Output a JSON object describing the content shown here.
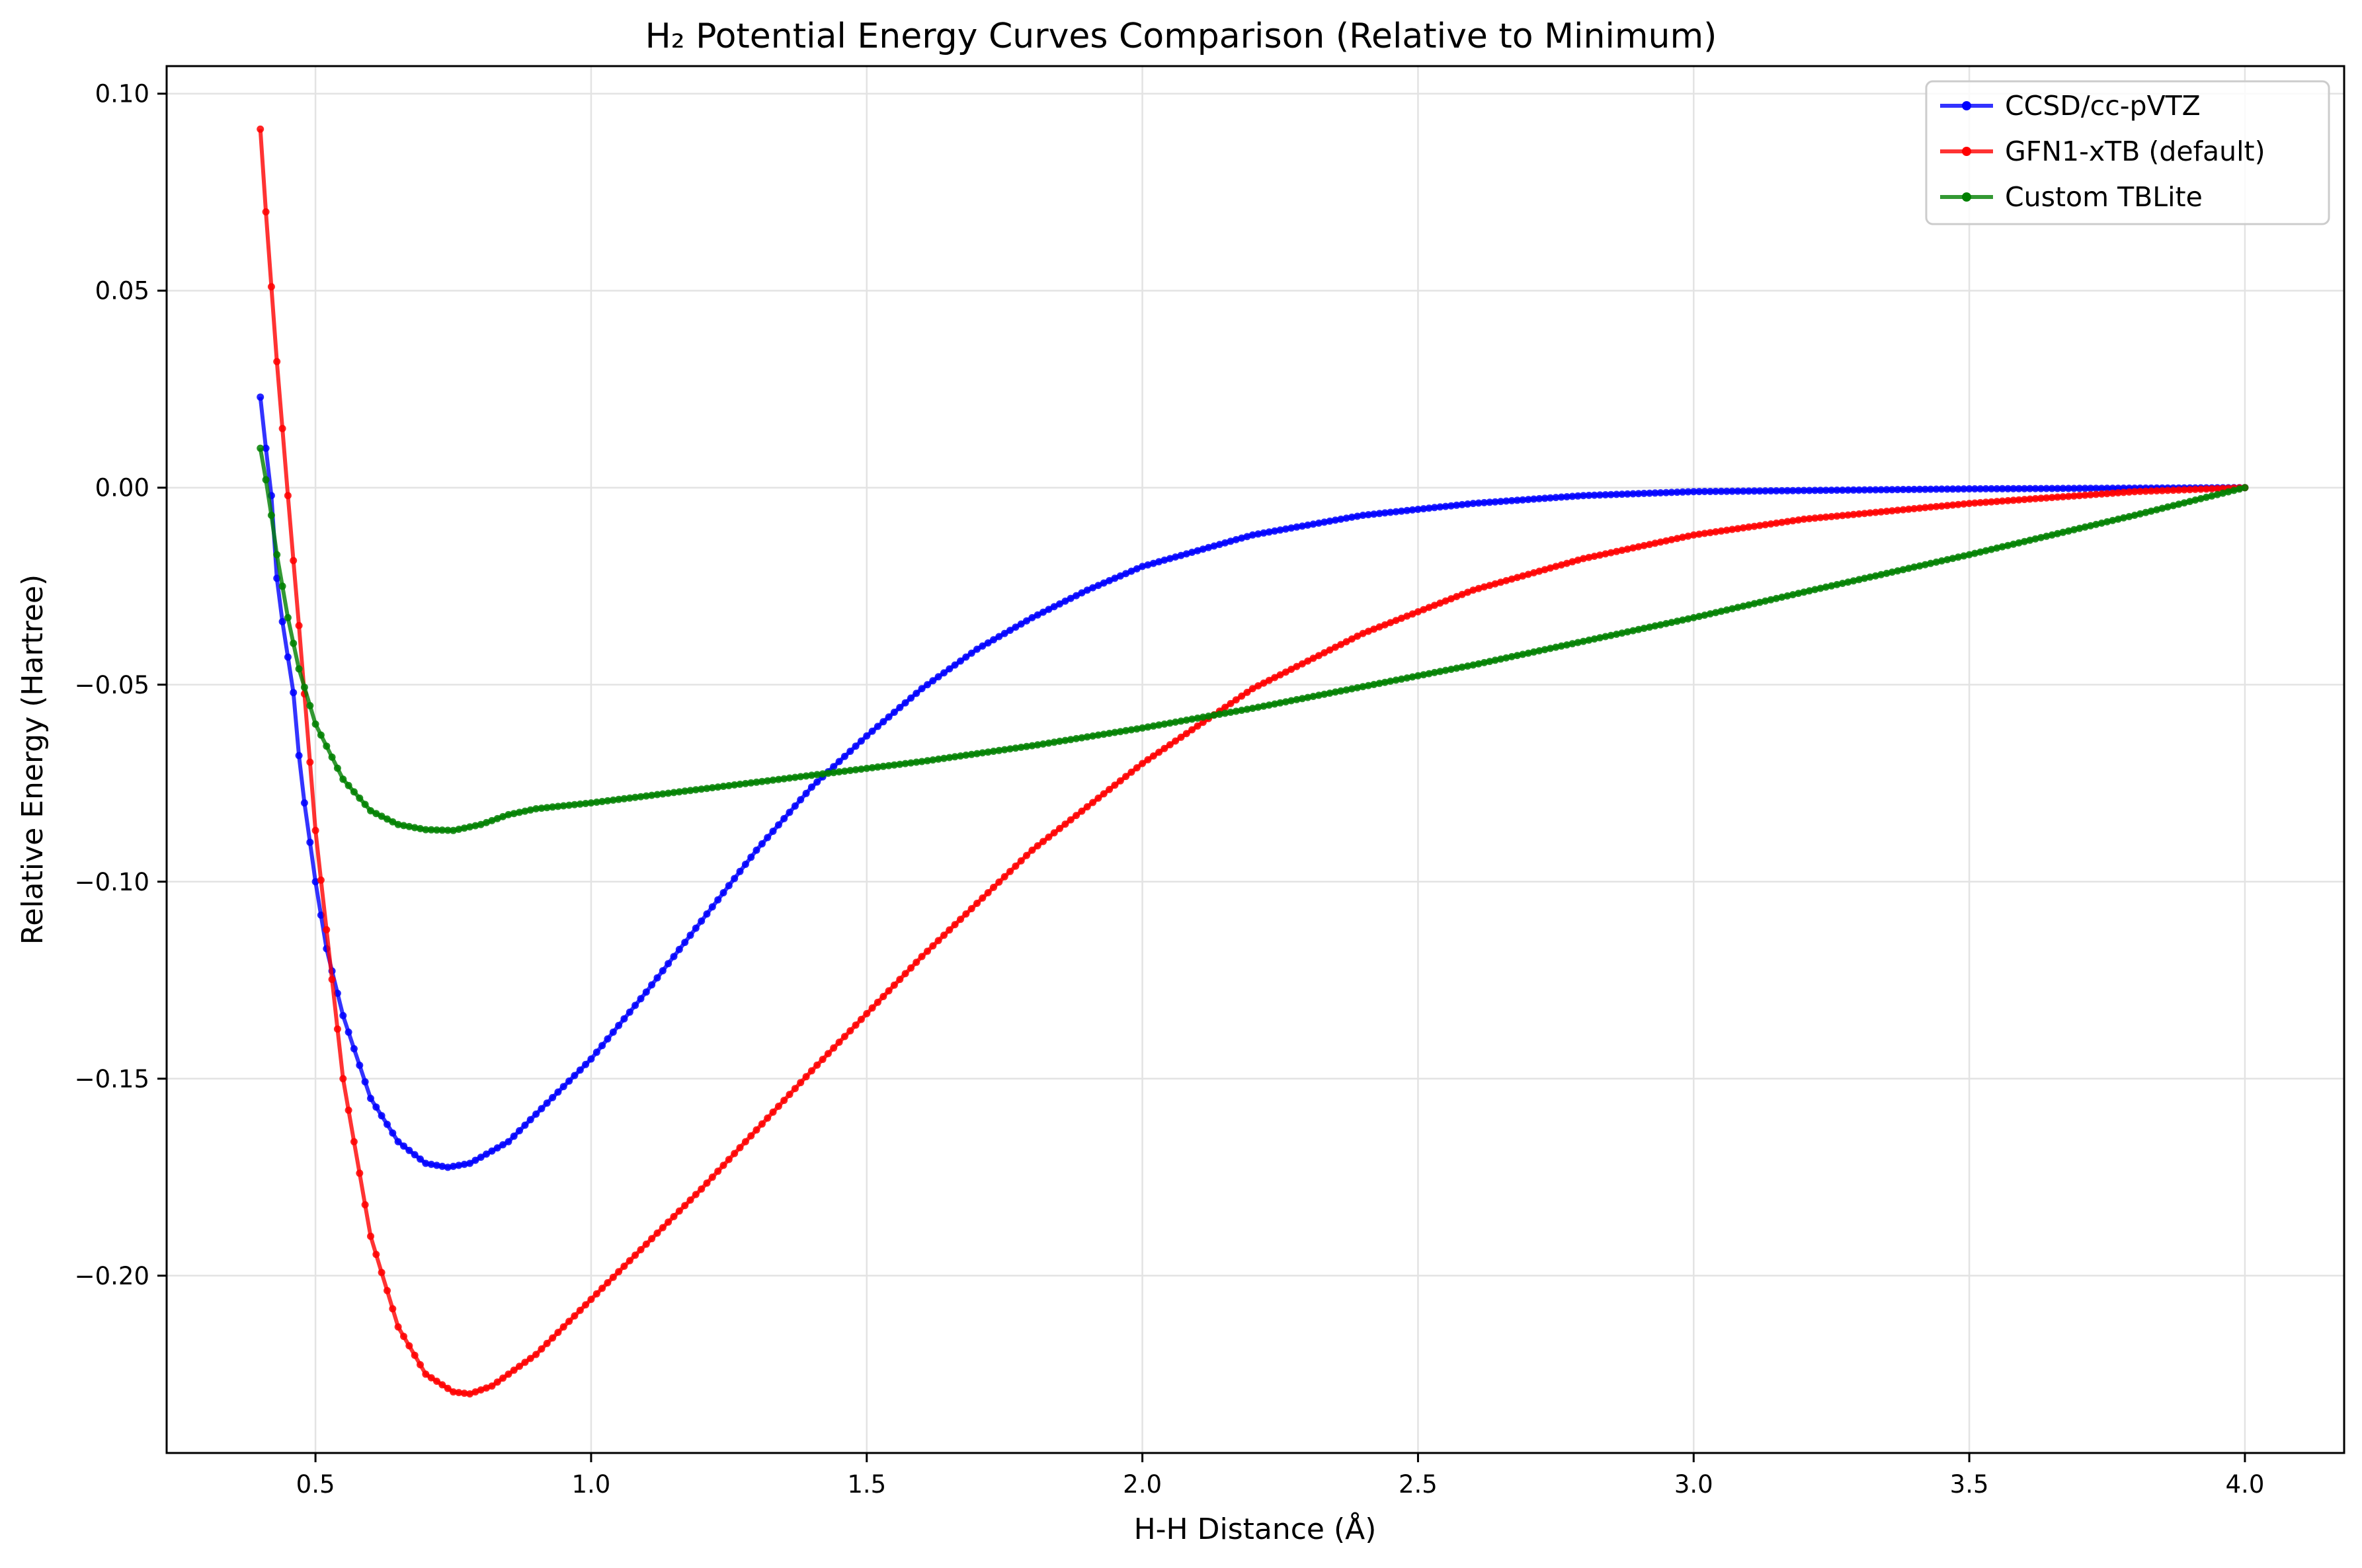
{
  "chart_data": {
    "type": "line",
    "title": "H₂ Potential Energy Curves Comparison (Relative to Minimum)",
    "xlabel": "H-H Distance (Å)",
    "ylabel": "Relative Energy (Hartree)",
    "xlim": [
      0.23,
      4.18
    ],
    "ylim": [
      -0.245,
      0.107
    ],
    "xticks": [
      0.5,
      1.0,
      1.5,
      2.0,
      2.5,
      3.0,
      3.5,
      4.0
    ],
    "xtick_labels": [
      "0.5",
      "1.0",
      "1.5",
      "2.0",
      "2.5",
      "3.0",
      "3.5",
      "4.0"
    ],
    "yticks": [
      0.1,
      0.05,
      0.0,
      -0.05,
      -0.1,
      -0.15,
      -0.2
    ],
    "ytick_labels": [
      "0.10",
      "0.05",
      "0.00",
      "−0.05",
      "−0.10",
      "−0.15",
      "−0.20"
    ],
    "grid": true,
    "legend_position": "top-right",
    "x_range": {
      "start": 0.4,
      "end": 4.0,
      "step": 0.01
    },
    "series": [
      {
        "name": "CCSD/cc-pVTZ",
        "color": "#0000ff",
        "key_points": [
          [
            0.4,
            0.023
          ],
          [
            0.41,
            0.01
          ],
          [
            0.42,
            -0.002
          ],
          [
            0.43,
            -0.023
          ],
          [
            0.44,
            -0.034
          ],
          [
            0.45,
            -0.043
          ],
          [
            0.46,
            -0.052
          ],
          [
            0.47,
            -0.068
          ],
          [
            0.48,
            -0.08
          ],
          [
            0.5,
            -0.1
          ],
          [
            0.52,
            -0.117
          ],
          [
            0.55,
            -0.134
          ],
          [
            0.6,
            -0.155
          ],
          [
            0.65,
            -0.166
          ],
          [
            0.7,
            -0.1715
          ],
          [
            0.74,
            -0.1725
          ],
          [
            0.78,
            -0.1715
          ],
          [
            0.85,
            -0.166
          ],
          [
            0.9,
            -0.159
          ],
          [
            1.0,
            -0.145
          ],
          [
            1.1,
            -0.128
          ],
          [
            1.2,
            -0.11
          ],
          [
            1.3,
            -0.092
          ],
          [
            1.4,
            -0.076
          ],
          [
            1.5,
            -0.063
          ],
          [
            1.6,
            -0.051
          ],
          [
            1.7,
            -0.041
          ],
          [
            1.8,
            -0.033
          ],
          [
            1.9,
            -0.026
          ],
          [
            2.0,
            -0.02
          ],
          [
            2.2,
            -0.012
          ],
          [
            2.4,
            -0.007
          ],
          [
            2.6,
            -0.004
          ],
          [
            2.8,
            -0.002
          ],
          [
            3.0,
            -0.001
          ],
          [
            3.5,
            -0.0003
          ],
          [
            4.0,
            0.0
          ]
        ]
      },
      {
        "name": "GFN1-xTB (default)",
        "color": "#ff0000",
        "key_points": [
          [
            0.4,
            0.091
          ],
          [
            0.41,
            0.07
          ],
          [
            0.42,
            0.051
          ],
          [
            0.43,
            0.032
          ],
          [
            0.44,
            0.015
          ],
          [
            0.45,
            -0.002
          ],
          [
            0.47,
            -0.035
          ],
          [
            0.5,
            -0.087
          ],
          [
            0.55,
            -0.15
          ],
          [
            0.6,
            -0.19
          ],
          [
            0.65,
            -0.213
          ],
          [
            0.7,
            -0.225
          ],
          [
            0.75,
            -0.2295
          ],
          [
            0.78,
            -0.23
          ],
          [
            0.82,
            -0.228
          ],
          [
            0.9,
            -0.22
          ],
          [
            1.0,
            -0.206
          ],
          [
            1.2,
            -0.178
          ],
          [
            1.4,
            -0.148
          ],
          [
            1.6,
            -0.119
          ],
          [
            1.8,
            -0.092
          ],
          [
            2.0,
            -0.07
          ],
          [
            2.2,
            -0.051
          ],
          [
            2.4,
            -0.037
          ],
          [
            2.6,
            -0.026
          ],
          [
            2.8,
            -0.018
          ],
          [
            3.0,
            -0.012
          ],
          [
            3.2,
            -0.008
          ],
          [
            3.5,
            -0.004
          ],
          [
            3.8,
            -0.001
          ],
          [
            4.0,
            0.0
          ]
        ]
      },
      {
        "name": "Custom TBLite",
        "color": "#008000",
        "key_points": [
          [
            0.4,
            0.01
          ],
          [
            0.41,
            0.002
          ],
          [
            0.42,
            -0.007
          ],
          [
            0.43,
            -0.017
          ],
          [
            0.44,
            -0.025
          ],
          [
            0.45,
            -0.033
          ],
          [
            0.47,
            -0.046
          ],
          [
            0.5,
            -0.06
          ],
          [
            0.55,
            -0.074
          ],
          [
            0.6,
            -0.082
          ],
          [
            0.65,
            -0.0855
          ],
          [
            0.7,
            -0.0868
          ],
          [
            0.75,
            -0.087
          ],
          [
            0.8,
            -0.0855
          ],
          [
            0.85,
            -0.083
          ],
          [
            0.9,
            -0.0815
          ],
          [
            1.0,
            -0.08
          ],
          [
            1.2,
            -0.0765
          ],
          [
            1.4,
            -0.073
          ],
          [
            1.6,
            -0.0695
          ],
          [
            1.8,
            -0.0655
          ],
          [
            2.0,
            -0.061
          ],
          [
            2.2,
            -0.056
          ],
          [
            2.4,
            -0.0505
          ],
          [
            2.6,
            -0.045
          ],
          [
            2.8,
            -0.039
          ],
          [
            3.0,
            -0.033
          ],
          [
            3.2,
            -0.0265
          ],
          [
            3.5,
            -0.017
          ],
          [
            3.8,
            -0.007
          ],
          [
            4.0,
            0.0
          ]
        ]
      }
    ]
  }
}
